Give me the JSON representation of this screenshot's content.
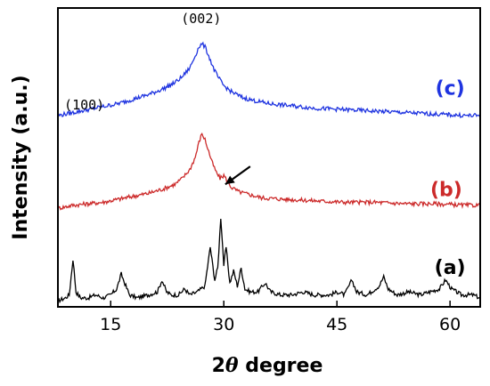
{
  "chart_data": {
    "type": "line",
    "title": "",
    "xlabel_prefix": "2",
    "xlabel_theta": "θ",
    "xlabel_suffix": " degree",
    "ylabel": "Intensity (a.u.)",
    "xlim": [
      8,
      64
    ],
    "ylim": [
      0,
      100
    ],
    "yticks_shown": false,
    "grid": false,
    "x_ticks": [
      15,
      30,
      45,
      60
    ],
    "x_tick_labels": [
      "15",
      "30",
      "45",
      "60"
    ],
    "annotations": [
      {
        "text": "(100)",
        "x": 11.5,
        "y": 66
      },
      {
        "text": "(002)",
        "x": 27.0,
        "y": 95
      },
      {
        "type": "arrow",
        "x": 30.2,
        "y": 41,
        "x2": 33.5,
        "y2": 47
      }
    ],
    "series": [
      {
        "name": "(a)",
        "color": "#000000",
        "label_x": 60,
        "label_y": 11,
        "points": [
          [
            8,
            2
          ],
          [
            9,
            3
          ],
          [
            9.5,
            4
          ],
          [
            10,
            16
          ],
          [
            10.4,
            5
          ],
          [
            11,
            3
          ],
          [
            12,
            3
          ],
          [
            13,
            4
          ],
          [
            14,
            3
          ],
          [
            15,
            4
          ],
          [
            15.8,
            6
          ],
          [
            16.4,
            11
          ],
          [
            17,
            7
          ],
          [
            17.5,
            4
          ],
          [
            18.5,
            3
          ],
          [
            20,
            4
          ],
          [
            21.2,
            5
          ],
          [
            21.8,
            9
          ],
          [
            22.4,
            5
          ],
          [
            23,
            4
          ],
          [
            24,
            4
          ],
          [
            24.8,
            6
          ],
          [
            25.5,
            4
          ],
          [
            26.5,
            5
          ],
          [
            27.5,
            7
          ],
          [
            28.2,
            20
          ],
          [
            28.8,
            9
          ],
          [
            29.2,
            13
          ],
          [
            29.6,
            30
          ],
          [
            30,
            14
          ],
          [
            30.3,
            20
          ],
          [
            30.8,
            8
          ],
          [
            31.3,
            12
          ],
          [
            31.8,
            7
          ],
          [
            32.3,
            13
          ],
          [
            32.8,
            6
          ],
          [
            33.5,
            5
          ],
          [
            34.5,
            5
          ],
          [
            35.5,
            8
          ],
          [
            36.2,
            5
          ],
          [
            37.5,
            4
          ],
          [
            39,
            4
          ],
          [
            40.5,
            5
          ],
          [
            42,
            4
          ],
          [
            44,
            4
          ],
          [
            45.2,
            5
          ],
          [
            46,
            4
          ],
          [
            47,
            9
          ],
          [
            47.6,
            5
          ],
          [
            49,
            4
          ],
          [
            50.6,
            7
          ],
          [
            51.2,
            10
          ],
          [
            51.8,
            6
          ],
          [
            53,
            4
          ],
          [
            54.5,
            5
          ],
          [
            56,
            4
          ],
          [
            57.3,
            5
          ],
          [
            58.6,
            6
          ],
          [
            59.4,
            9
          ],
          [
            60.2,
            6
          ],
          [
            61.5,
            4
          ],
          [
            63,
            4
          ],
          [
            64,
            3
          ]
        ]
      },
      {
        "name": "(b)",
        "color": "#cc2a2a",
        "label_x": 59.5,
        "label_y": 37,
        "points": [
          [
            8,
            33
          ],
          [
            10,
            34
          ],
          [
            12,
            34.5
          ],
          [
            14,
            35
          ],
          [
            16,
            36
          ],
          [
            18,
            37
          ],
          [
            20,
            38
          ],
          [
            22,
            39.5
          ],
          [
            23.5,
            41
          ],
          [
            24.5,
            43
          ],
          [
            25.5,
            46
          ],
          [
            26.2,
            50
          ],
          [
            26.7,
            55
          ],
          [
            27.1,
            58
          ],
          [
            27.5,
            56
          ],
          [
            28,
            52
          ],
          [
            28.5,
            48
          ],
          [
            29,
            45
          ],
          [
            29.5,
            43
          ],
          [
            30,
            44
          ],
          [
            30.5,
            42
          ],
          [
            31,
            40
          ],
          [
            32,
            38.5
          ],
          [
            33.5,
            37.5
          ],
          [
            35,
            36.5
          ],
          [
            38,
            36
          ],
          [
            42,
            35.5
          ],
          [
            46,
            35
          ],
          [
            50,
            35
          ],
          [
            54,
            34.5
          ],
          [
            58,
            34.5
          ],
          [
            62,
            34
          ],
          [
            64,
            34
          ]
        ]
      },
      {
        "name": "(c)",
        "color": "#1f34e0",
        "label_x": 60,
        "label_y": 71,
        "points": [
          [
            8,
            64
          ],
          [
            10,
            65
          ],
          [
            12,
            66
          ],
          [
            14,
            67
          ],
          [
            16,
            68
          ],
          [
            18,
            69.5
          ],
          [
            20,
            71
          ],
          [
            22,
            73
          ],
          [
            23.5,
            75
          ],
          [
            24.5,
            77
          ],
          [
            25.5,
            80
          ],
          [
            26.2,
            84
          ],
          [
            26.7,
            87
          ],
          [
            27.1,
            88
          ],
          [
            27.5,
            87
          ],
          [
            28,
            84
          ],
          [
            28.6,
            80
          ],
          [
            29.2,
            77
          ],
          [
            30,
            74
          ],
          [
            31,
            72
          ],
          [
            32.5,
            70
          ],
          [
            34,
            69
          ],
          [
            36,
            68
          ],
          [
            38,
            67.5
          ],
          [
            42,
            66.5
          ],
          [
            46,
            66
          ],
          [
            50,
            65.5
          ],
          [
            54,
            65
          ],
          [
            58,
            64.5
          ],
          [
            62,
            64
          ],
          [
            64,
            64
          ]
        ]
      }
    ]
  }
}
